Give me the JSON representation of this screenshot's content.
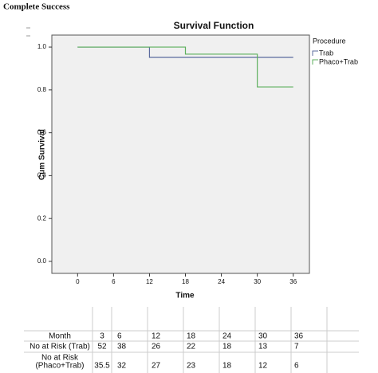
{
  "header": {
    "title": "Complete Success"
  },
  "chart_data": {
    "type": "step",
    "title": "Survival Function",
    "x_label": "Time",
    "y_label": "Cum Survival",
    "xlim": [
      -4.3,
      38.7
    ],
    "xticks": [
      0,
      6,
      12,
      18,
      24,
      30,
      36
    ],
    "ylim": [
      -0.056,
      1.056
    ],
    "yticks": [
      {
        "value": 0,
        "label": "0.0"
      },
      {
        "value": 0.2,
        "label": "0.2"
      },
      {
        "value": 0.4,
        "label": "0.4"
      },
      {
        "value": 0.6,
        "label": "0.6"
      },
      {
        "value": 0.8,
        "label": "0.8"
      },
      {
        "value": 1,
        "label": "1.0"
      }
    ],
    "legend_title": "Procedure",
    "legend": "right",
    "series": [
      {
        "name": "Trab",
        "color": "#5b6b9e",
        "x": [
          0,
          12,
          12,
          36
        ],
        "values": [
          1,
          1,
          0.952,
          0.952
        ]
      },
      {
        "name": "Phaco+Trab",
        "color": "#5caf5c",
        "x": [
          0,
          18,
          18,
          30,
          30,
          36
        ],
        "values": [
          1,
          1,
          0.967,
          0.967,
          0.814,
          0.814
        ]
      }
    ]
  },
  "table": {
    "rows": [
      {
        "label": [
          "Month"
        ],
        "cells": [
          3,
          6,
          12,
          18,
          24,
          30,
          36
        ]
      },
      {
        "label": [
          "No at Risk (Trab)"
        ],
        "cells": [
          52,
          38,
          26,
          22,
          18,
          13,
          7
        ]
      },
      {
        "label": [
          "No at Risk",
          "(Phaco+Trab)"
        ],
        "cells": [
          35.5,
          32,
          27,
          23,
          18,
          12,
          6
        ]
      }
    ]
  }
}
